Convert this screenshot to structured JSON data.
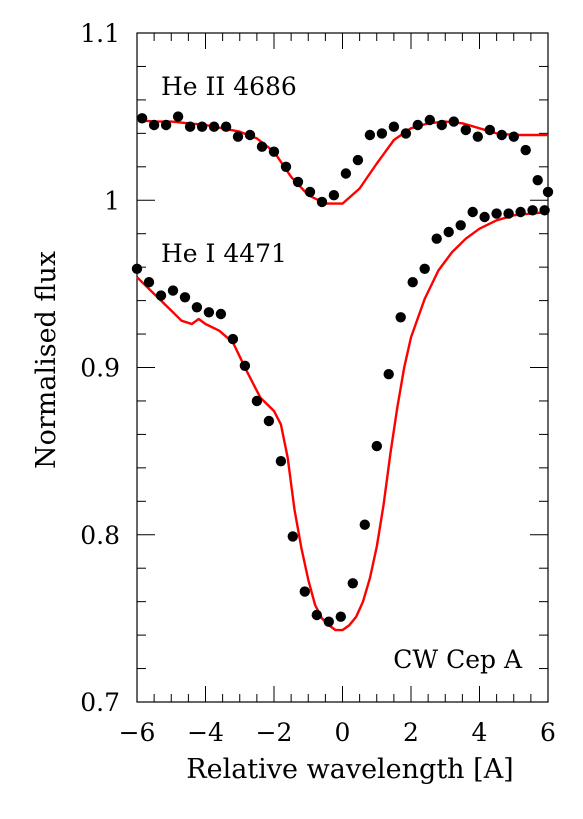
{
  "chart_data": {
    "type": "scatter",
    "xlabel": "Relative wavelength [A]",
    "ylabel": "Normalised flux",
    "xlim": [
      -6,
      6
    ],
    "ylim": [
      0.7,
      1.1
    ],
    "xticks": [
      -6,
      -4,
      -2,
      0,
      2,
      4,
      6
    ],
    "xtick_labels": [
      "−6",
      "−4",
      "−2",
      "0",
      "2",
      "4",
      "6"
    ],
    "yticks": [
      0.7,
      0.8,
      0.9,
      1.0,
      1.1
    ],
    "ytick_labels": [
      "0.7",
      "0.8",
      "0.9",
      "1",
      "1.1"
    ],
    "x_minor_step": 0.5,
    "y_minor_step": 0.02,
    "grid": false,
    "annotation": "CW Cep A",
    "colors": {
      "points": "#000000",
      "model": "#ff0000",
      "axes": "#000000"
    },
    "series": [
      {
        "label": "He II 4686",
        "label_at": {
          "x": -5.3,
          "y": 1.063
        },
        "observed": {
          "x": [
            -5.85,
            -5.5,
            -5.15,
            -4.8,
            -4.45,
            -4.1,
            -3.75,
            -3.4,
            -3.05,
            -2.7,
            -2.35,
            -2.0,
            -1.65,
            -1.3,
            -0.95,
            -0.6,
            -0.25,
            0.1,
            0.45,
            0.8,
            1.15,
            1.5,
            1.85,
            2.2,
            2.55,
            2.9,
            3.25,
            3.6,
            3.95,
            4.3,
            4.65,
            5.0,
            5.35,
            5.7,
            6.0
          ],
          "y": [
            1.049,
            1.045,
            1.045,
            1.05,
            1.044,
            1.044,
            1.044,
            1.044,
            1.038,
            1.039,
            1.032,
            1.029,
            1.02,
            1.011,
            1.005,
            0.999,
            1.003,
            1.016,
            1.024,
            1.039,
            1.04,
            1.044,
            1.04,
            1.045,
            1.048,
            1.045,
            1.047,
            1.042,
            1.038,
            1.042,
            1.039,
            1.038,
            1.03,
            1.012,
            1.005
          ]
        },
        "model": {
          "x": [
            -6,
            -5.5,
            -5,
            -4.5,
            -4,
            -3.5,
            -3,
            -2.5,
            -2,
            -1.5,
            -1,
            -0.5,
            0,
            0.5,
            1,
            1.5,
            2,
            2.5,
            3,
            3.5,
            4,
            4.5,
            5,
            5.5,
            6
          ],
          "y": [
            1.048,
            1.047,
            1.047,
            1.046,
            1.045,
            1.043,
            1.041,
            1.037,
            1.029,
            1.014,
            1.003,
            0.998,
            0.998,
            1.007,
            1.022,
            1.036,
            1.043,
            1.046,
            1.047,
            1.046,
            1.043,
            1.04,
            1.039,
            1.039,
            1.039
          ]
        }
      },
      {
        "label": "He I 4471",
        "label_at": {
          "x": -5.3,
          "y": 0.963
        },
        "observed": {
          "x": [
            -6.0,
            -5.65,
            -5.3,
            -4.95,
            -4.6,
            -4.25,
            -3.9,
            -3.55,
            -3.2,
            -2.85,
            -2.5,
            -2.15,
            -1.8,
            -1.45,
            -1.1,
            -0.75,
            -0.4,
            -0.05,
            0.3,
            0.65,
            1.0,
            1.35,
            1.7,
            2.05,
            2.4,
            2.75,
            3.1,
            3.45,
            3.8,
            4.15,
            4.5,
            4.85,
            5.2,
            5.55,
            5.9
          ],
          "y": [
            0.959,
            0.951,
            0.943,
            0.946,
            0.942,
            0.936,
            0.933,
            0.932,
            0.917,
            0.901,
            0.88,
            0.868,
            0.844,
            0.799,
            0.766,
            0.752,
            0.748,
            0.751,
            0.771,
            0.806,
            0.853,
            0.896,
            0.93,
            0.951,
            0.959,
            0.977,
            0.981,
            0.985,
            0.993,
            0.99,
            0.992,
            0.992,
            0.993,
            0.994,
            0.994
          ]
        },
        "model": {
          "x": [
            -6,
            -5.5,
            -5,
            -4.7,
            -4.4,
            -4.2,
            -4,
            -3.6,
            -3.2,
            -2.8,
            -2.4,
            -2.0,
            -1.8,
            -1.6,
            -1.4,
            -1.2,
            -1.0,
            -0.8,
            -0.6,
            -0.4,
            -0.2,
            0,
            0.2,
            0.4,
            0.6,
            0.8,
            1.0,
            1.2,
            1.4,
            1.6,
            1.8,
            2.0,
            2.4,
            2.8,
            3.2,
            3.6,
            4.0,
            4.5,
            5.0,
            5.5,
            6.0
          ],
          "y": [
            0.954,
            0.944,
            0.934,
            0.928,
            0.926,
            0.929,
            0.926,
            0.922,
            0.915,
            0.898,
            0.882,
            0.874,
            0.866,
            0.846,
            0.815,
            0.792,
            0.773,
            0.758,
            0.75,
            0.746,
            0.743,
            0.743,
            0.746,
            0.751,
            0.76,
            0.774,
            0.793,
            0.818,
            0.849,
            0.876,
            0.9,
            0.918,
            0.941,
            0.958,
            0.969,
            0.977,
            0.983,
            0.988,
            0.991,
            0.992,
            0.993
          ]
        }
      }
    ]
  }
}
